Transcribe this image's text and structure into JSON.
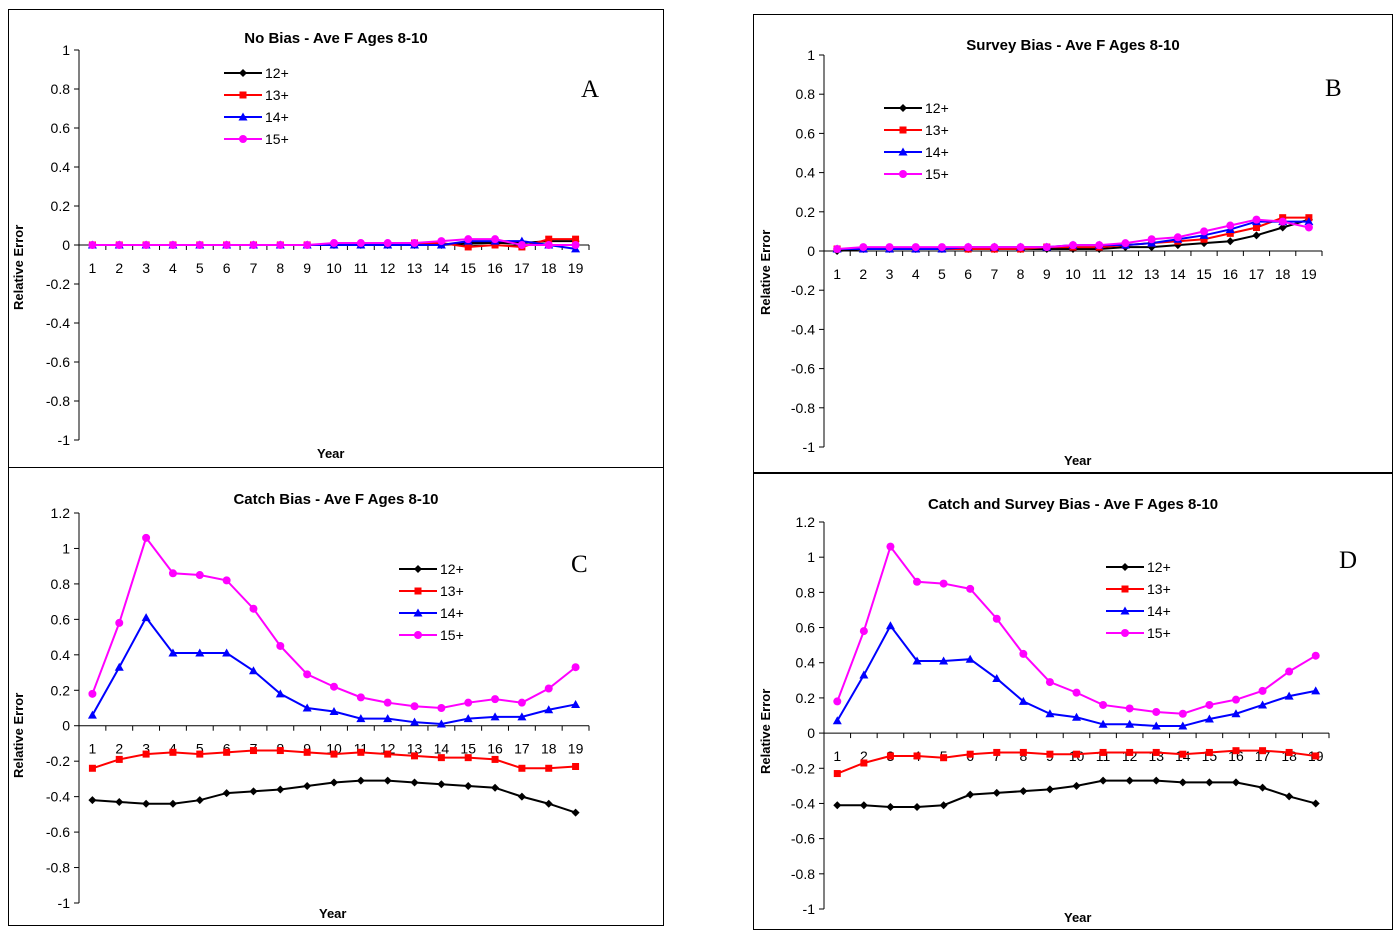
{
  "chart_data": [
    {
      "type": "line",
      "title": "No Bias - Ave F Ages 8-10",
      "letter": "A",
      "xlabel": "Year",
      "ylabel": "Relative Error",
      "ylim": [
        -1,
        1
      ],
      "yticks": [
        1,
        0.8,
        0.6,
        0.4,
        0.2,
        0,
        -0.2,
        -0.4,
        -0.6,
        -0.8,
        -1
      ],
      "x": [
        1,
        2,
        3,
        4,
        5,
        6,
        7,
        8,
        9,
        10,
        11,
        12,
        13,
        14,
        15,
        16,
        17,
        18,
        19
      ],
      "legend_position": "top-center",
      "series": [
        {
          "name": "12+",
          "color": "#000000",
          "marker": "diamond",
          "values": [
            0,
            0,
            0,
            0,
            0,
            0,
            0,
            0,
            0,
            0,
            0,
            0,
            0,
            0,
            0.01,
            0.01,
            0.01,
            0.02,
            0.02
          ]
        },
        {
          "name": "13+",
          "color": "#ff0000",
          "marker": "square",
          "values": [
            0,
            0,
            0,
            0,
            0,
            0,
            0,
            0,
            0,
            0,
            0,
            0,
            0.01,
            0.01,
            -0.01,
            0,
            -0.01,
            0.03,
            0.03
          ]
        },
        {
          "name": "14+",
          "color": "#0000ff",
          "marker": "triangle",
          "values": [
            0,
            0,
            0,
            0,
            0,
            0,
            0,
            0,
            0,
            0,
            0,
            0,
            0,
            0,
            0.02,
            0.02,
            0.02,
            0,
            -0.02
          ]
        },
        {
          "name": "15+",
          "color": "#ff00ff",
          "marker": "circle",
          "values": [
            0,
            0,
            0,
            0,
            0,
            0,
            0,
            0,
            0,
            0.01,
            0.01,
            0.01,
            0.01,
            0.02,
            0.03,
            0.03,
            0,
            0,
            0
          ]
        }
      ]
    },
    {
      "type": "line",
      "title": "Survey Bias - Ave F Ages 8-10",
      "letter": "B",
      "xlabel": "Year",
      "ylabel": "Relative Error",
      "ylim": [
        -1,
        1
      ],
      "yticks": [
        1,
        0.8,
        0.6,
        0.4,
        0.2,
        0,
        -0.2,
        -0.4,
        -0.6,
        -0.8,
        -1
      ],
      "x": [
        1,
        2,
        3,
        4,
        5,
        6,
        7,
        8,
        9,
        10,
        11,
        12,
        13,
        14,
        15,
        16,
        17,
        18,
        19
      ],
      "legend_position": "top-left",
      "series": [
        {
          "name": "12+",
          "color": "#000000",
          "marker": "diamond",
          "values": [
            0,
            0.01,
            0.01,
            0.01,
            0.01,
            0.01,
            0.01,
            0.01,
            0.01,
            0.01,
            0.01,
            0.02,
            0.02,
            0.03,
            0.04,
            0.05,
            0.08,
            0.12,
            0.16
          ]
        },
        {
          "name": "13+",
          "color": "#ff0000",
          "marker": "square",
          "values": [
            0.01,
            0.01,
            0.01,
            0.01,
            0.01,
            0.01,
            0.01,
            0.01,
            0.02,
            0.02,
            0.02,
            0.03,
            0.04,
            0.05,
            0.06,
            0.09,
            0.12,
            0.17,
            0.17
          ]
        },
        {
          "name": "14+",
          "color": "#0000ff",
          "marker": "triangle",
          "values": [
            0.01,
            0.01,
            0.01,
            0.01,
            0.01,
            0.02,
            0.02,
            0.02,
            0.02,
            0.03,
            0.03,
            0.03,
            0.04,
            0.06,
            0.08,
            0.11,
            0.15,
            0.15,
            0.15
          ]
        },
        {
          "name": "15+",
          "color": "#ff00ff",
          "marker": "circle",
          "values": [
            0.01,
            0.02,
            0.02,
            0.02,
            0.02,
            0.02,
            0.02,
            0.02,
            0.02,
            0.03,
            0.03,
            0.04,
            0.06,
            0.07,
            0.1,
            0.13,
            0.16,
            0.15,
            0.12
          ]
        }
      ]
    },
    {
      "type": "line",
      "title": "Catch Bias - Ave F Ages 8-10",
      "letter": "C",
      "xlabel": "Year",
      "ylabel": "Relative Error",
      "ylim": [
        -1,
        1.2
      ],
      "yticks": [
        1.2,
        1,
        0.8,
        0.6,
        0.4,
        0.2,
        0,
        -0.2,
        -0.4,
        -0.6,
        -0.8,
        -1
      ],
      "x": [
        1,
        2,
        3,
        4,
        5,
        6,
        7,
        8,
        9,
        10,
        11,
        12,
        13,
        14,
        15,
        16,
        17,
        18,
        19
      ],
      "legend_position": "top-right",
      "series": [
        {
          "name": "12+",
          "color": "#000000",
          "marker": "diamond",
          "values": [
            -0.42,
            -0.43,
            -0.44,
            -0.44,
            -0.42,
            -0.38,
            -0.37,
            -0.36,
            -0.34,
            -0.32,
            -0.31,
            -0.31,
            -0.32,
            -0.33,
            -0.34,
            -0.35,
            -0.4,
            -0.44,
            -0.49
          ]
        },
        {
          "name": "13+",
          "color": "#ff0000",
          "marker": "square",
          "values": [
            -0.24,
            -0.19,
            -0.16,
            -0.15,
            -0.16,
            -0.15,
            -0.14,
            -0.14,
            -0.15,
            -0.16,
            -0.15,
            -0.16,
            -0.17,
            -0.18,
            -0.18,
            -0.19,
            -0.24,
            -0.24,
            -0.23
          ]
        },
        {
          "name": "14+",
          "color": "#0000ff",
          "marker": "triangle",
          "values": [
            0.06,
            0.33,
            0.61,
            0.41,
            0.41,
            0.41,
            0.31,
            0.18,
            0.1,
            0.08,
            0.04,
            0.04,
            0.02,
            0.01,
            0.04,
            0.05,
            0.05,
            0.09,
            0.12
          ]
        },
        {
          "name": "15+",
          "color": "#ff00ff",
          "marker": "circle",
          "values": [
            0.18,
            0.58,
            1.06,
            0.86,
            0.85,
            0.82,
            0.66,
            0.45,
            0.29,
            0.22,
            0.16,
            0.13,
            0.11,
            0.1,
            0.13,
            0.15,
            0.13,
            0.21,
            0.33
          ]
        }
      ]
    },
    {
      "type": "line",
      "title": "Catch and Survey Bias - Ave F Ages 8-10",
      "letter": "D",
      "xlabel": "Year",
      "ylabel": "Relative Error",
      "ylim": [
        -1,
        1.2
      ],
      "yticks": [
        1.2,
        1,
        0.8,
        0.6,
        0.4,
        0.2,
        0,
        -0.2,
        -0.4,
        -0.6,
        -0.8,
        -1
      ],
      "x": [
        1,
        2,
        3,
        4,
        5,
        6,
        7,
        8,
        9,
        10,
        11,
        12,
        13,
        14,
        15,
        16,
        17,
        18,
        19
      ],
      "legend_position": "top-right",
      "series": [
        {
          "name": "12+",
          "color": "#000000",
          "marker": "diamond",
          "values": [
            -0.41,
            -0.41,
            -0.42,
            -0.42,
            -0.41,
            -0.35,
            -0.34,
            -0.33,
            -0.32,
            -0.3,
            -0.27,
            -0.27,
            -0.27,
            -0.28,
            -0.28,
            -0.28,
            -0.31,
            -0.36,
            -0.4
          ]
        },
        {
          "name": "13+",
          "color": "#ff0000",
          "marker": "square",
          "values": [
            -0.23,
            -0.17,
            -0.13,
            -0.13,
            -0.14,
            -0.12,
            -0.11,
            -0.11,
            -0.12,
            -0.12,
            -0.11,
            -0.11,
            -0.11,
            -0.12,
            -0.11,
            -0.1,
            -0.1,
            -0.11,
            -0.13
          ]
        },
        {
          "name": "14+",
          "color": "#0000ff",
          "marker": "triangle",
          "values": [
            0.07,
            0.33,
            0.61,
            0.41,
            0.41,
            0.42,
            0.31,
            0.18,
            0.11,
            0.09,
            0.05,
            0.05,
            0.04,
            0.04,
            0.08,
            0.11,
            0.16,
            0.21,
            0.24
          ]
        },
        {
          "name": "15+",
          "color": "#ff00ff",
          "marker": "circle",
          "values": [
            0.18,
            0.58,
            1.06,
            0.86,
            0.85,
            0.82,
            0.65,
            0.45,
            0.29,
            0.23,
            0.16,
            0.14,
            0.12,
            0.11,
            0.16,
            0.19,
            0.24,
            0.35,
            0.44
          ]
        }
      ]
    }
  ]
}
